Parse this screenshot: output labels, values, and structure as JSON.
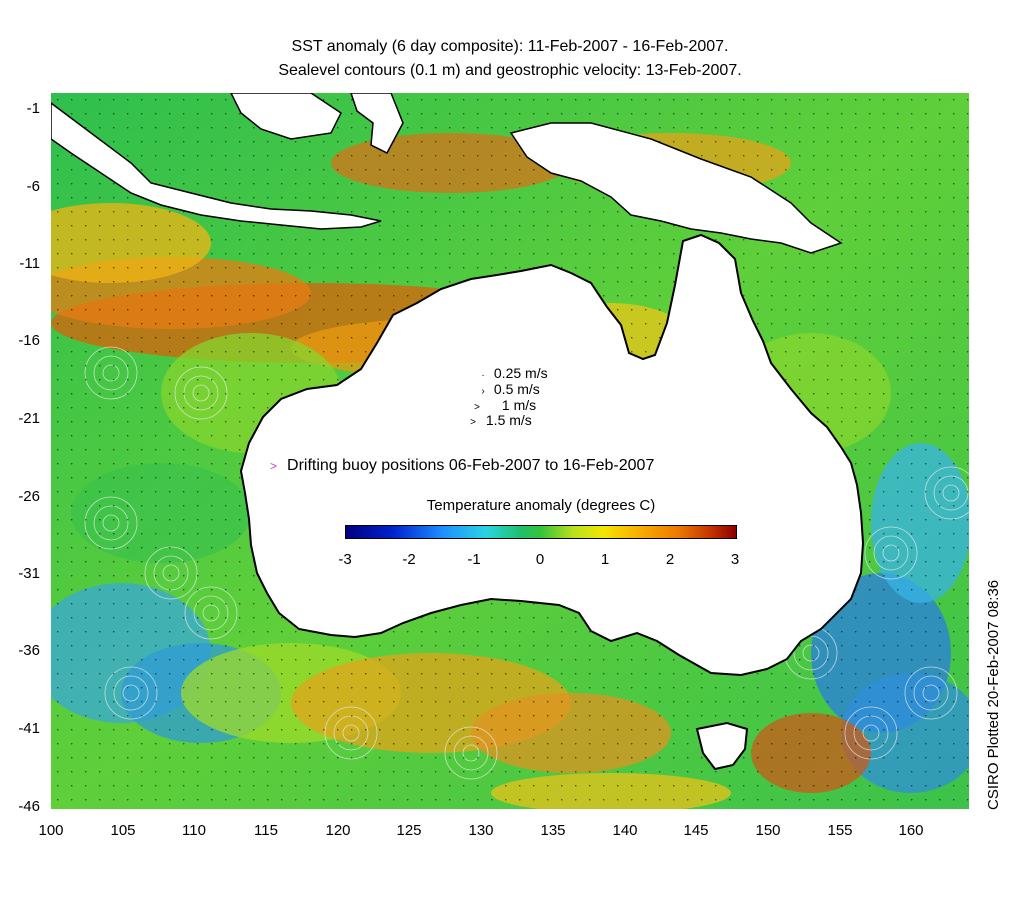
{
  "title": {
    "line1": "SST anomaly (6 day composite): 11-Feb-2007 - 16-Feb-2007.",
    "line2": "Sealevel contours (0.1 m) and geostrophic velocity: 13-Feb-2007."
  },
  "map": {
    "lon_range": [
      100,
      164
    ],
    "lat_range": [
      -47,
      0
    ],
    "x_ticks": [
      "100",
      "105",
      "110",
      "115",
      "120",
      "125",
      "130",
      "135",
      "140",
      "145",
      "150",
      "155",
      "160"
    ],
    "y_ticks": [
      "-1",
      "-6",
      "-11",
      "-16",
      "-21",
      "-26",
      "-31",
      "-36",
      "-41",
      "-46"
    ],
    "colors": {
      "land": "#ffffff",
      "cloud_mask": "#ffffff",
      "coastline": "#000000",
      "contour": "#e8e8e8",
      "buoy_track": "#d43ad4",
      "arrow": "#000000"
    }
  },
  "velocity_legend": [
    {
      "label": "0.25 m/s",
      "mark": "·"
    },
    {
      "label": "0.5 m/s",
      "mark": "›"
    },
    {
      "label": "1 m/s",
      "mark": ">"
    },
    {
      "label": "1.5 m/s",
      "mark": ">"
    }
  ],
  "buoy_legend": {
    "marker": ">",
    "label": "Drifting buoy positions 06-Feb-2007 to 16-Feb-2007"
  },
  "colorbar": {
    "title": "Temperature anomaly (degrees C)",
    "ticks": [
      "-3",
      "-2",
      "-1",
      "0",
      "1",
      "2",
      "3"
    ],
    "range": [
      -3,
      3
    ]
  },
  "credit": "CSIRO Plotted 20-Feb-2007 08:36"
}
